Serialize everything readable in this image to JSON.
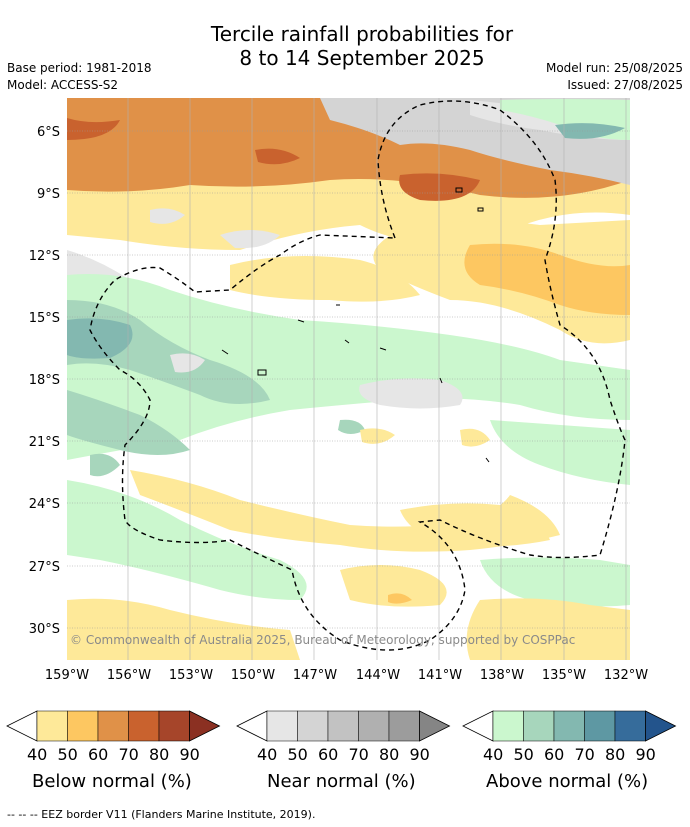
{
  "header": {
    "title_line1": "Tercile rainfall probabilities for",
    "title_line2": "8 to 14 September 2025",
    "base_period": "Base period: 1981-2018",
    "model": "Model: ACCESS-S2",
    "model_run": "Model run: 25/08/2025",
    "issued": "Issued: 27/08/2025"
  },
  "map": {
    "lat_labels": [
      "6°S",
      "9°S",
      "12°S",
      "15°S",
      "18°S",
      "21°S",
      "24°S",
      "27°S",
      "30°S"
    ],
    "lon_labels": [
      "159°W",
      "156°W",
      "153°W",
      "150°W",
      "147°W",
      "144°W",
      "141°W",
      "138°W",
      "135°W",
      "132°W"
    ],
    "copyright": "© Commonwealth of Australia 2025, Bureau of Meteorology, supported by COSPPac",
    "gridlines": true
  },
  "legends": [
    {
      "title": "Below normal (%)",
      "ticks": [
        "40",
        "50",
        "60",
        "70",
        "80",
        "90"
      ],
      "colors": [
        "#ffffff",
        "#fee999",
        "#fdc761",
        "#e09148",
        "#c9622e",
        "#a6452a",
        "#8b3022"
      ]
    },
    {
      "title": "Near normal (%)",
      "ticks": [
        "40",
        "50",
        "60",
        "70",
        "80",
        "90"
      ],
      "colors": [
        "#ffffff",
        "#e6e6e6",
        "#d4d4d4",
        "#c2c2c2",
        "#b0b0b0",
        "#9c9c9c",
        "#858585"
      ]
    },
    {
      "title": "Above normal (%)",
      "ticks": [
        "40",
        "50",
        "60",
        "70",
        "80",
        "90"
      ],
      "colors": [
        "#ffffff",
        "#cbf7ce",
        "#a7d6bc",
        "#83b8b0",
        "#5e98a3",
        "#366c9b",
        "#23548c"
      ]
    }
  ],
  "footer": {
    "eez_note": "--  --  -- EEZ border V11 (Flanders Marine Institute, 2019)."
  }
}
